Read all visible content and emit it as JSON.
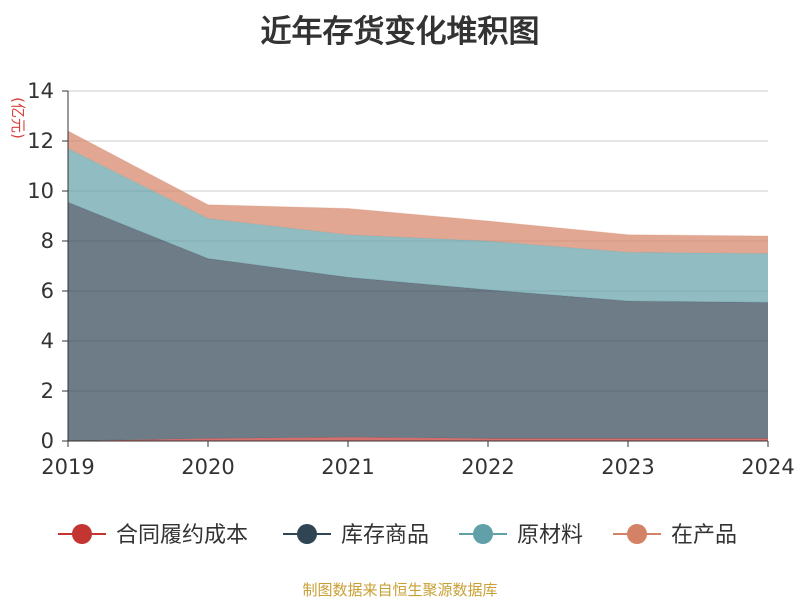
{
  "chart_data": {
    "type": "area",
    "stacked": true,
    "title": "近年存货变化堆积图",
    "unit": "(亿元)",
    "x": [
      "2019",
      "2020",
      "2021",
      "2022",
      "2023",
      "2024"
    ],
    "ylim": [
      0,
      14
    ],
    "yticks": [
      "0",
      "2",
      "4",
      "6",
      "8",
      "10",
      "12",
      "14"
    ],
    "grid": true,
    "legend_position": "bottom",
    "series": [
      {
        "name": "合同履约成本",
        "color": "#c23531",
        "values": [
          0.0,
          0.1,
          0.15,
          0.1,
          0.1,
          0.1
        ]
      },
      {
        "name": "库存商品",
        "color": "#2f4554",
        "values": [
          9.55,
          7.2,
          6.4,
          5.95,
          5.5,
          5.45
        ]
      },
      {
        "name": "原材料",
        "color": "#61a0a8",
        "values": [
          2.15,
          1.6,
          1.7,
          1.95,
          1.95,
          1.95
        ]
      },
      {
        "name": "在产品",
        "color": "#d48265",
        "values": [
          0.7,
          0.55,
          1.05,
          0.8,
          0.7,
          0.7
        ]
      }
    ]
  },
  "footer": {
    "source": "制图数据来自恒生聚源数据库"
  }
}
